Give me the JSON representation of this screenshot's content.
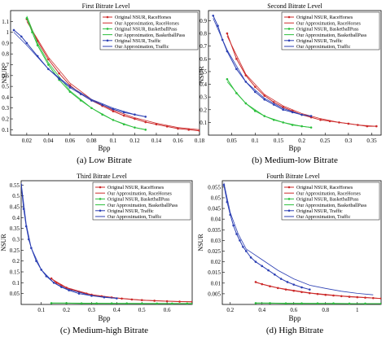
{
  "figure": {
    "legend_labels": [
      "Original NSUR, RaceHorses",
      "Our Approximation, RaceHorses",
      "Original NSUR, BasketballPass",
      "Our Approximation, BasketballPass",
      "Original NSUR, Traffic",
      "Our Approximation, Traffic"
    ],
    "colors": {
      "racehorses": "#cc2a2a",
      "basketballpass": "#2bbf3c",
      "traffic": "#2b3fb3"
    }
  },
  "chart_data": [
    {
      "type": "line",
      "title": "First Bitrate Level",
      "caption": "(a)  Low Bitrate",
      "xlabel": "Bpp",
      "ylabel": "NSUR",
      "xlim": [
        0.005,
        0.18
      ],
      "ylim": [
        0.05,
        1.2
      ],
      "xticks": [
        0.02,
        0.04,
        0.06,
        0.08,
        0.1,
        0.12,
        0.14,
        0.16,
        0.18
      ],
      "yticks": [
        0.1,
        0.2,
        0.3,
        0.4,
        0.5,
        0.6,
        0.7,
        0.8,
        0.9,
        1,
        1.1
      ],
      "legend": "top-right",
      "series": [
        {
          "name": "Original NSUR, RaceHorses",
          "color": "#cc2a2a",
          "style": "marker",
          "x": [
            0.02,
            0.03,
            0.04,
            0.05,
            0.06,
            0.07,
            0.08,
            0.09,
            0.1,
            0.11,
            0.12,
            0.13,
            0.14,
            0.15,
            0.16,
            0.17,
            0.18
          ],
          "y": [
            1.12,
            0.92,
            0.75,
            0.62,
            0.51,
            0.43,
            0.37,
            0.32,
            0.27,
            0.23,
            0.2,
            0.17,
            0.15,
            0.13,
            0.11,
            0.1,
            0.09
          ]
        },
        {
          "name": "Our Approximation, RaceHorses",
          "color": "#cc2a2a",
          "style": "line",
          "x": [
            0.02,
            0.04,
            0.06,
            0.08,
            0.1,
            0.12,
            0.14,
            0.16,
            0.18
          ],
          "y": [
            1.1,
            0.77,
            0.53,
            0.38,
            0.28,
            0.21,
            0.16,
            0.12,
            0.1
          ]
        },
        {
          "name": "Original NSUR, BasketballPass",
          "color": "#2bbf3c",
          "style": "marker",
          "x": [
            0.02,
            0.025,
            0.03,
            0.04,
            0.05,
            0.06,
            0.07,
            0.08,
            0.09,
            0.1,
            0.11,
            0.12,
            0.13
          ],
          "y": [
            1.13,
            1.0,
            0.88,
            0.7,
            0.56,
            0.45,
            0.37,
            0.3,
            0.24,
            0.19,
            0.15,
            0.12,
            0.1
          ]
        },
        {
          "name": "Our Approximation, BasketballPass",
          "color": "#2bbf3c",
          "style": "line",
          "x": [
            0.02,
            0.03,
            0.04,
            0.06,
            0.08,
            0.1,
            0.12,
            0.13
          ],
          "y": [
            1.15,
            0.9,
            0.72,
            0.46,
            0.3,
            0.19,
            0.12,
            0.1
          ]
        },
        {
          "name": "Original NSUR, Traffic",
          "color": "#2b3fb3",
          "style": "marker",
          "x": [
            0.008,
            0.015,
            0.02,
            0.03,
            0.04,
            0.05,
            0.06,
            0.07,
            0.08,
            0.09,
            0.1,
            0.11,
            0.12,
            0.13
          ],
          "y": [
            1.02,
            0.96,
            0.9,
            0.78,
            0.66,
            0.57,
            0.49,
            0.43,
            0.37,
            0.33,
            0.29,
            0.26,
            0.24,
            0.22
          ]
        },
        {
          "name": "Our Approximation, Traffic",
          "color": "#2b3fb3",
          "style": "line",
          "x": [
            0.008,
            0.02,
            0.04,
            0.06,
            0.08,
            0.1,
            0.12,
            0.13
          ],
          "y": [
            1.0,
            0.88,
            0.66,
            0.5,
            0.38,
            0.3,
            0.24,
            0.22
          ]
        }
      ]
    },
    {
      "type": "line",
      "title": "Second Bitrate Level",
      "caption": "(b)  Medium-low Bitrate",
      "xlabel": "Bpp",
      "ylabel": "NSUR",
      "xlim": [
        0.0,
        0.37
      ],
      "ylim": [
        0.0,
        0.98
      ],
      "xticks": [
        0.05,
        0.1,
        0.15,
        0.2,
        0.25,
        0.3,
        0.35
      ],
      "yticks": [
        0.1,
        0.2,
        0.3,
        0.4,
        0.5,
        0.6,
        0.7,
        0.8,
        0.9
      ],
      "legend": "top-right",
      "series": [
        {
          "name": "Original NSUR, RaceHorses",
          "color": "#cc2a2a",
          "style": "marker",
          "x": [
            0.04,
            0.06,
            0.08,
            0.1,
            0.12,
            0.14,
            0.16,
            0.18,
            0.2,
            0.22,
            0.24,
            0.26,
            0.28,
            0.3,
            0.32,
            0.34,
            0.36
          ],
          "y": [
            0.8,
            0.6,
            0.47,
            0.38,
            0.31,
            0.26,
            0.22,
            0.19,
            0.16,
            0.14,
            0.12,
            0.11,
            0.1,
            0.09,
            0.08,
            0.07,
            0.07
          ]
        },
        {
          "name": "Our Approximation, RaceHorses",
          "color": "#cc2a2a",
          "style": "line",
          "x": [
            0.04,
            0.08,
            0.12,
            0.16,
            0.2,
            0.24,
            0.28,
            0.32,
            0.36
          ],
          "y": [
            0.78,
            0.48,
            0.32,
            0.23,
            0.17,
            0.13,
            0.1,
            0.08,
            0.07
          ]
        },
        {
          "name": "Original NSUR, BasketballPass",
          "color": "#2bbf3c",
          "style": "marker",
          "x": [
            0.04,
            0.06,
            0.08,
            0.1,
            0.12,
            0.14,
            0.16,
            0.18,
            0.2,
            0.22
          ],
          "y": [
            0.44,
            0.33,
            0.25,
            0.19,
            0.15,
            0.12,
            0.1,
            0.08,
            0.07,
            0.06
          ]
        },
        {
          "name": "Our Approximation, BasketballPass",
          "color": "#2bbf3c",
          "style": "line",
          "x": [
            0.04,
            0.08,
            0.12,
            0.16,
            0.2,
            0.22
          ],
          "y": [
            0.42,
            0.25,
            0.15,
            0.1,
            0.07,
            0.06
          ]
        },
        {
          "name": "Original NSUR, Traffic",
          "color": "#2b3fb3",
          "style": "marker",
          "x": [
            0.01,
            0.02,
            0.03,
            0.04,
            0.06,
            0.08,
            0.1,
            0.12,
            0.14,
            0.16,
            0.18,
            0.2,
            0.22
          ],
          "y": [
            0.94,
            0.86,
            0.75,
            0.66,
            0.52,
            0.42,
            0.34,
            0.28,
            0.24,
            0.2,
            0.18,
            0.16,
            0.15
          ]
        },
        {
          "name": "Our Approximation, Traffic",
          "color": "#2b3fb3",
          "style": "line",
          "x": [
            0.01,
            0.04,
            0.08,
            0.12,
            0.16,
            0.2,
            0.22
          ],
          "y": [
            0.92,
            0.67,
            0.42,
            0.29,
            0.21,
            0.16,
            0.15
          ]
        }
      ]
    },
    {
      "type": "line",
      "title": "Third Bitrate Level",
      "caption": "(c)  Medium-high Bitrate",
      "xlabel": "Bpp",
      "ylabel": "NSUR",
      "xlim": [
        0.02,
        0.7
      ],
      "ylim": [
        0.0,
        0.57
      ],
      "xticks": [
        0.1,
        0.2,
        0.3,
        0.4,
        0.5,
        0.6
      ],
      "yticks": [
        0.05,
        0.1,
        0.15,
        0.2,
        0.25,
        0.3,
        0.35,
        0.4,
        0.45,
        0.5,
        0.55
      ],
      "legend": "top-right",
      "series": [
        {
          "name": "Original NSUR, RaceHorses",
          "color": "#cc2a2a",
          "style": "marker",
          "x": [
            0.14,
            0.16,
            0.18,
            0.2,
            0.22,
            0.25,
            0.28,
            0.3,
            0.34,
            0.38,
            0.42,
            0.46,
            0.5,
            0.55,
            0.6,
            0.65,
            0.7
          ],
          "y": [
            0.12,
            0.1,
            0.088,
            0.077,
            0.068,
            0.058,
            0.05,
            0.045,
            0.038,
            0.032,
            0.027,
            0.023,
            0.02,
            0.017,
            0.015,
            0.013,
            0.012
          ]
        },
        {
          "name": "Our Approximation, RaceHorses",
          "color": "#cc2a2a",
          "style": "line",
          "x": [
            0.14,
            0.2,
            0.3,
            0.4,
            0.5,
            0.6,
            0.7
          ],
          "y": [
            0.118,
            0.078,
            0.045,
            0.03,
            0.02,
            0.015,
            0.012
          ]
        },
        {
          "name": "Original NSUR, BasketballPass",
          "color": "#2bbf3c",
          "style": "marker",
          "x": [
            0.14,
            0.2,
            0.26,
            0.32,
            0.38,
            0.44,
            0.5,
            0.56,
            0.62,
            0.68,
            0.7
          ],
          "y": [
            0.006,
            0.006,
            0.005,
            0.005,
            0.005,
            0.005,
            0.004,
            0.004,
            0.004,
            0.004,
            0.004
          ]
        },
        {
          "name": "Our Approximation, BasketballPass",
          "color": "#2bbf3c",
          "style": "line",
          "x": [
            0.14,
            0.4,
            0.7
          ],
          "y": [
            0.007,
            0.005,
            0.004
          ]
        },
        {
          "name": "Original NSUR, Traffic",
          "color": "#2b3fb3",
          "style": "marker",
          "x": [
            0.02,
            0.03,
            0.04,
            0.05,
            0.06,
            0.08,
            0.1,
            0.12,
            0.15,
            0.18,
            0.21,
            0.25,
            0.3,
            0.35,
            0.4
          ],
          "y": [
            0.55,
            0.44,
            0.36,
            0.3,
            0.26,
            0.2,
            0.16,
            0.13,
            0.1,
            0.08,
            0.065,
            0.05,
            0.04,
            0.033,
            0.028
          ]
        },
        {
          "name": "Our Approximation, Traffic",
          "color": "#2b3fb3",
          "style": "line",
          "x": [
            0.02,
            0.04,
            0.06,
            0.1,
            0.15,
            0.2,
            0.3,
            0.4
          ],
          "y": [
            0.56,
            0.37,
            0.26,
            0.16,
            0.1,
            0.072,
            0.04,
            0.028
          ]
        }
      ]
    },
    {
      "type": "line",
      "title": "Fourth Bitrate Level",
      "caption": "(d)  High Bitrate",
      "xlabel": "Bpp",
      "ylabel": "NSUR",
      "xlim": [
        0.15,
        1.15
      ],
      "ylim": [
        0.0,
        0.058
      ],
      "xticks": [
        0.2,
        0.4,
        0.6,
        0.8,
        1
      ],
      "yticks": [
        0.005,
        0.01,
        0.015,
        0.02,
        0.025,
        0.03,
        0.035,
        0.04,
        0.045,
        0.05,
        0.055
      ],
      "legend": "top-right",
      "series": [
        {
          "name": "Original NSUR, RaceHorses",
          "color": "#cc2a2a",
          "style": "marker",
          "x": [
            0.36,
            0.4,
            0.45,
            0.5,
            0.55,
            0.6,
            0.65,
            0.7,
            0.75,
            0.8,
            0.85,
            0.9,
            0.95,
            1.0,
            1.05,
            1.1,
            1.15
          ],
          "y": [
            0.0105,
            0.0095,
            0.0085,
            0.0077,
            0.007,
            0.0064,
            0.0058,
            0.0053,
            0.0049,
            0.0045,
            0.0042,
            0.0039,
            0.0036,
            0.0034,
            0.0032,
            0.003,
            0.0028
          ]
        },
        {
          "name": "Our Approximation, RaceHorses",
          "color": "#cc2a2a",
          "style": "line",
          "x": [
            0.36,
            0.5,
            0.7,
            0.9,
            1.15
          ],
          "y": [
            0.0103,
            0.0078,
            0.0054,
            0.004,
            0.0028
          ]
        },
        {
          "name": "Original NSUR, BasketballPass",
          "color": "#2bbf3c",
          "style": "marker",
          "x": [
            0.36,
            0.45,
            0.55,
            0.65,
            0.75,
            0.85,
            0.95,
            1.05,
            1.15
          ],
          "y": [
            0.0006,
            0.0006,
            0.0005,
            0.0005,
            0.0005,
            0.0005,
            0.0004,
            0.0004,
            0.0004
          ]
        },
        {
          "name": "Our Approximation, BasketballPass",
          "color": "#2bbf3c",
          "style": "line",
          "x": [
            0.36,
            0.7,
            1.15
          ],
          "y": [
            0.0007,
            0.0005,
            0.0004
          ]
        },
        {
          "name": "Original NSUR, Traffic",
          "color": "#2b3fb3",
          "style": "marker",
          "x": [
            0.16,
            0.18,
            0.2,
            0.22,
            0.24,
            0.26,
            0.28,
            0.3,
            0.33,
            0.36,
            0.4,
            0.44,
            0.48,
            0.52,
            0.56,
            0.6,
            0.65,
            0.7
          ],
          "y": [
            0.056,
            0.048,
            0.042,
            0.037,
            0.033,
            0.03,
            0.027,
            0.025,
            0.022,
            0.02,
            0.018,
            0.016,
            0.014,
            0.012,
            0.0105,
            0.0093,
            0.008,
            0.007
          ]
        },
        {
          "name": "Our Approximation, Traffic",
          "color": "#2b3fb3",
          "style": "line",
          "x": [
            0.16,
            0.2,
            0.25,
            0.3,
            0.4,
            0.5,
            0.6,
            0.7,
            0.8,
            0.9,
            1.0,
            1.1
          ],
          "y": [
            0.057,
            0.043,
            0.033,
            0.026,
            0.021,
            0.016,
            0.012,
            0.009,
            0.0075,
            0.0062,
            0.0052,
            0.0045
          ]
        }
      ]
    }
  ]
}
